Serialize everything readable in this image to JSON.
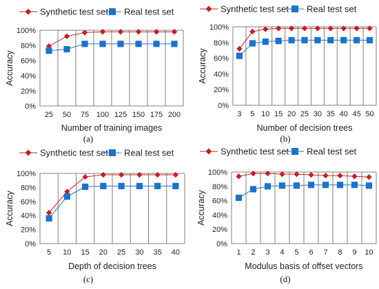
{
  "colors": {
    "synthetic": "#c0202a",
    "real": "#1f72c4",
    "grid": "#7f7f7f"
  },
  "chart_data": [
    {
      "type": "line",
      "panel_label": "(a)",
      "xlabel": "Number of training images",
      "ylabel": "Accuracy",
      "categories": [
        "25",
        "50",
        "75",
        "100",
        "125",
        "150",
        "175",
        "200"
      ],
      "ylim": [
        0,
        100
      ],
      "y_ticks": [
        "0%",
        "20%",
        "40%",
        "60%",
        "80%",
        "100%"
      ],
      "grid": "vertical lines",
      "legend": "top",
      "series": [
        {
          "name": "Synthetic test set",
          "marker": "diamond",
          "values": [
            79,
            92,
            97,
            98,
            98,
            98,
            98,
            98
          ]
        },
        {
          "name": "Real test set",
          "marker": "square",
          "values": [
            73,
            75,
            82,
            82,
            82,
            82,
            82,
            82
          ]
        }
      ]
    },
    {
      "type": "line",
      "panel_label": "(b)",
      "xlabel": "Number of decision trees",
      "ylabel": "Accuracy",
      "categories": [
        "3",
        "5",
        "10",
        "15",
        "20",
        "25",
        "30",
        "35",
        "40",
        "45",
        "50"
      ],
      "ylim": [
        0,
        100
      ],
      "y_ticks": [
        "0%",
        "20%",
        "40%",
        "60%",
        "80%",
        "100%"
      ],
      "grid": "vertical lines",
      "legend": "top",
      "series": [
        {
          "name": "Synthetic test set",
          "marker": "diamond",
          "values": [
            72,
            94,
            97,
            98,
            98,
            98,
            98,
            98,
            98,
            98,
            98
          ]
        },
        {
          "name": "Real test set",
          "marker": "square",
          "values": [
            63,
            79,
            81,
            82,
            83,
            83,
            83,
            83,
            83,
            83,
            83
          ]
        }
      ]
    },
    {
      "type": "line",
      "panel_label": "(c)",
      "xlabel": "Depth of decision trees",
      "ylabel": "Accuracy",
      "categories": [
        "5",
        "10",
        "15",
        "20",
        "25",
        "30",
        "35",
        "40"
      ],
      "ylim": [
        0,
        100
      ],
      "y_ticks": [
        "0%",
        "20%",
        "40%",
        "60%",
        "80%",
        "100%"
      ],
      "grid": "vertical lines",
      "legend": "top",
      "series": [
        {
          "name": "Synthetic test set",
          "marker": "diamond",
          "values": [
            44,
            74,
            95,
            98,
            98,
            98,
            98,
            98
          ]
        },
        {
          "name": "Real test set",
          "marker": "square",
          "values": [
            36,
            67,
            81,
            82,
            82,
            82,
            82,
            82
          ]
        }
      ]
    },
    {
      "type": "line",
      "panel_label": "(d)",
      "xlabel": "Modulus basis of offset vectors",
      "ylabel": "Accuracy",
      "categories": [
        "1",
        "2",
        "3",
        "4",
        "5",
        "6",
        "7",
        "8",
        "9",
        "10"
      ],
      "ylim": [
        0,
        100
      ],
      "y_ticks": [
        "0%",
        "20%",
        "40%",
        "60%",
        "80%",
        "100%"
      ],
      "grid": "vertical lines",
      "legend": "top",
      "series": [
        {
          "name": "Synthetic test set",
          "marker": "diamond",
          "values": [
            94,
            98,
            98,
            97,
            97,
            96,
            95,
            95,
            94,
            93
          ]
        },
        {
          "name": "Real test set",
          "marker": "square",
          "values": [
            64,
            76,
            80,
            81,
            81,
            82,
            82,
            82,
            82,
            81
          ]
        }
      ]
    }
  ]
}
